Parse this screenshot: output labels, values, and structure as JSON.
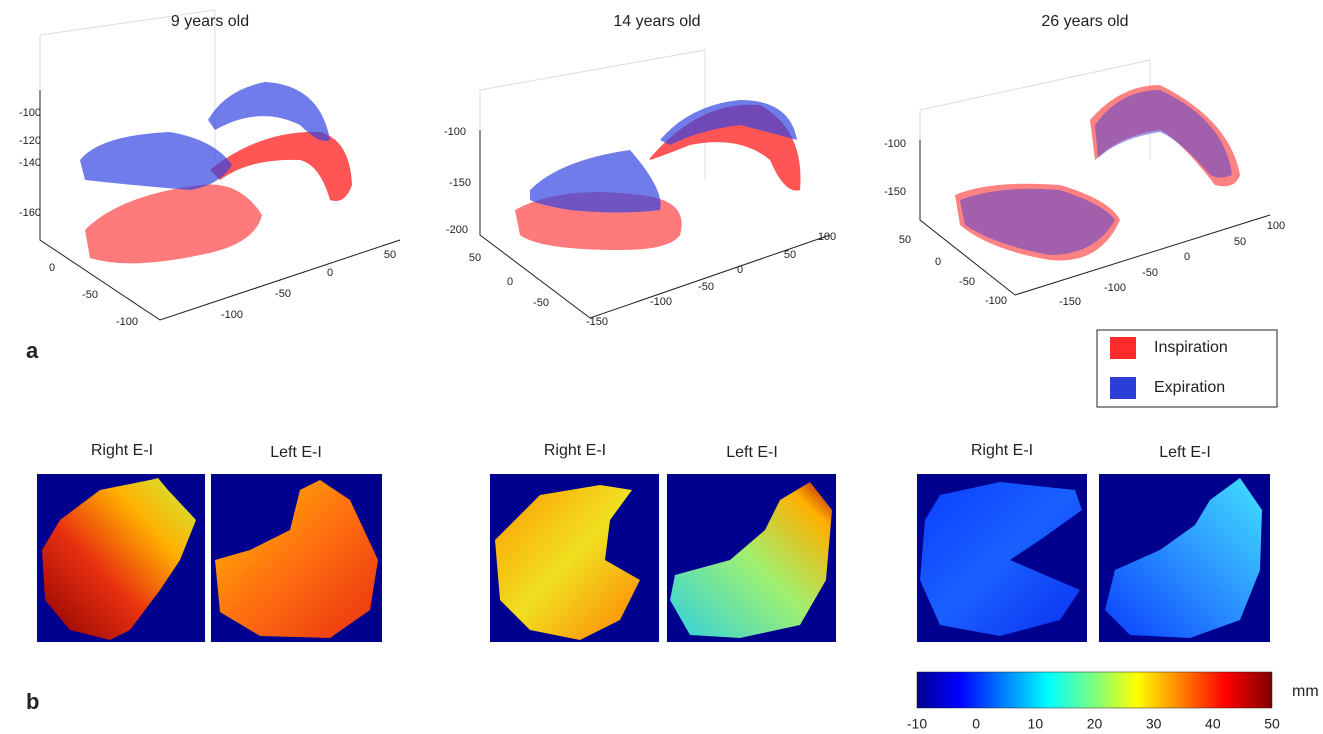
{
  "panel_a": {
    "label": "a",
    "plots": [
      {
        "title": "9 years old",
        "z_ticks": [
          -100,
          -120,
          -140,
          -160
        ],
        "y_ticks": [
          0,
          -50,
          -100
        ],
        "x_ticks": [
          50,
          0,
          -50,
          -100
        ]
      },
      {
        "title": "14 years old",
        "z_ticks": [
          -100,
          -150,
          -200
        ],
        "y_ticks": [
          50,
          0,
          -50
        ],
        "x_ticks": [
          100,
          50,
          0,
          -50,
          -100,
          -150
        ]
      },
      {
        "title": "26 years old",
        "z_ticks": [
          -100,
          -150
        ],
        "y_ticks": [
          50,
          0,
          -50,
          -100
        ],
        "x_ticks": [
          100,
          50,
          0,
          -50,
          -100,
          -150
        ]
      }
    ],
    "legend": [
      {
        "label": "Inspiration",
        "color": "#ff2a2a"
      },
      {
        "label": "Expiration",
        "color": "#2b3fd6"
      }
    ]
  },
  "panel_b": {
    "label": "b",
    "groups": [
      {
        "right": "Right E-I",
        "left": "Left E-I"
      },
      {
        "right": "Right E-I",
        "left": "Left E-I"
      },
      {
        "right": "Right E-I",
        "left": "Left E-I"
      }
    ],
    "colorbar": {
      "ticks": [
        -10,
        0,
        10,
        20,
        30,
        40,
        50
      ],
      "unit": "mm"
    }
  }
}
